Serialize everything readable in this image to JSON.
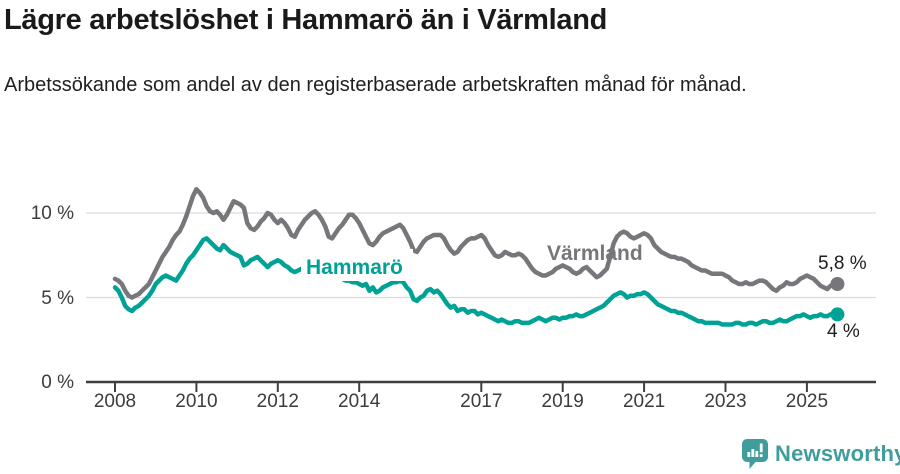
{
  "header": {
    "title": "Lägre arbetslöshet i Hammarö än i Värmland",
    "subtitle": "Arbetssökande som andel av den registerbaserade arbetskraften månad för månad."
  },
  "footer": {
    "brand": "Newsworthy",
    "brand_color": "#3f9d9d"
  },
  "chart_data": {
    "type": "line",
    "title": "Lägre arbetslöshet i Hammarö än i Värmland",
    "subtitle": "Arbetssökande som andel av den registerbaserade arbetskraften månad för månad.",
    "unit": "%",
    "x_start": "2008-01",
    "x_end": "2025-10",
    "points_per_year": 12,
    "x_ticks": [
      2008,
      2010,
      2012,
      2014,
      2017,
      2019,
      2021,
      2023,
      2025
    ],
    "y_ticks": [
      {
        "value": 0,
        "label": "0 %"
      },
      {
        "value": 5,
        "label": "5 %"
      },
      {
        "value": 10,
        "label": "10 %"
      }
    ],
    "ylim": [
      0,
      12
    ],
    "grid": "horizontal",
    "legend_position": "inline",
    "series": [
      {
        "name": "Hammarö",
        "color": "#00a296",
        "end_label": "4 %",
        "end_value": 4.0,
        "values": [
          5.6,
          5.4,
          5.0,
          4.5,
          4.3,
          4.2,
          4.4,
          4.5,
          4.7,
          4.9,
          5.1,
          5.4,
          5.8,
          6.0,
          6.2,
          6.3,
          6.2,
          6.1,
          6.0,
          6.3,
          6.6,
          7.0,
          7.3,
          7.5,
          7.8,
          8.1,
          8.4,
          8.5,
          8.3,
          8.1,
          7.9,
          7.8,
          8.1,
          7.9,
          7.7,
          7.6,
          7.5,
          7.4,
          6.9,
          7.0,
          7.2,
          7.3,
          7.4,
          7.2,
          7.0,
          6.8,
          7.0,
          7.1,
          7.2,
          7.1,
          6.9,
          6.8,
          6.6,
          6.5,
          6.6,
          6.7,
          6.8,
          6.7,
          6.6,
          6.6,
          6.5,
          6.4,
          6.3,
          6.2,
          6.2,
          6.3,
          6.2,
          6.1,
          6.0,
          6.0,
          5.9,
          5.9,
          5.8,
          5.7,
          5.8,
          5.4,
          5.6,
          5.3,
          5.4,
          5.6,
          5.7,
          5.8,
          5.9,
          5.9,
          6.0,
          5.9,
          5.6,
          5.4,
          4.9,
          4.8,
          5.0,
          5.1,
          5.4,
          5.5,
          5.3,
          5.4,
          5.2,
          4.9,
          4.6,
          4.4,
          4.5,
          4.2,
          4.3,
          4.3,
          4.1,
          4.2,
          4.2,
          4.0,
          4.1,
          4.0,
          3.9,
          3.8,
          3.7,
          3.6,
          3.7,
          3.6,
          3.5,
          3.5,
          3.6,
          3.6,
          3.5,
          3.5,
          3.5,
          3.6,
          3.7,
          3.8,
          3.7,
          3.6,
          3.7,
          3.8,
          3.8,
          3.7,
          3.8,
          3.8,
          3.9,
          3.9,
          4.0,
          3.9,
          3.9,
          4.0,
          4.1,
          4.2,
          4.3,
          4.4,
          4.5,
          4.7,
          4.9,
          5.1,
          5.2,
          5.3,
          5.2,
          5.0,
          5.1,
          5.1,
          5.2,
          5.2,
          5.3,
          5.2,
          5.0,
          4.8,
          4.6,
          4.5,
          4.4,
          4.3,
          4.2,
          4.2,
          4.1,
          4.1,
          4.0,
          3.9,
          3.8,
          3.7,
          3.6,
          3.6,
          3.5,
          3.5,
          3.5,
          3.5,
          3.5,
          3.4,
          3.4,
          3.4,
          3.4,
          3.5,
          3.5,
          3.4,
          3.4,
          3.5,
          3.5,
          3.4,
          3.5,
          3.6,
          3.6,
          3.5,
          3.5,
          3.6,
          3.7,
          3.6,
          3.6,
          3.7,
          3.8,
          3.9,
          3.9,
          4.0,
          3.9,
          3.8,
          3.9,
          3.9,
          4.0,
          3.9,
          3.9,
          4.0,
          4.0,
          4.0
        ]
      },
      {
        "name": "Värmland",
        "color": "#76767b",
        "end_label": "5,8 %",
        "end_value": 5.8,
        "values": [
          6.1,
          6.0,
          5.8,
          5.4,
          5.1,
          5.0,
          5.1,
          5.2,
          5.4,
          5.6,
          5.8,
          6.2,
          6.6,
          7.0,
          7.4,
          7.7,
          8.0,
          8.4,
          8.7,
          8.9,
          9.3,
          9.8,
          10.4,
          11.0,
          11.4,
          11.2,
          10.9,
          10.4,
          10.1,
          10.0,
          10.1,
          9.9,
          9.6,
          9.9,
          10.3,
          10.7,
          10.6,
          10.5,
          10.3,
          9.4,
          9.1,
          9.0,
          9.2,
          9.5,
          9.7,
          10.0,
          9.9,
          9.6,
          9.4,
          9.6,
          9.4,
          9.1,
          8.7,
          8.6,
          9.0,
          9.3,
          9.6,
          9.8,
          10.0,
          10.1,
          9.9,
          9.6,
          9.2,
          8.6,
          8.5,
          8.8,
          9.1,
          9.3,
          9.6,
          9.9,
          9.9,
          9.7,
          9.4,
          9.0,
          8.6,
          8.2,
          8.1,
          8.3,
          8.6,
          8.8,
          8.9,
          9.0,
          9.1,
          9.2,
          9.3,
          9.1,
          8.7,
          8.3,
          7.8,
          7.7,
          8.0,
          8.3,
          8.5,
          8.6,
          8.7,
          8.7,
          8.7,
          8.5,
          8.1,
          7.8,
          7.6,
          7.7,
          8.0,
          8.2,
          8.4,
          8.5,
          8.5,
          8.6,
          8.7,
          8.5,
          8.1,
          7.8,
          7.5,
          7.4,
          7.5,
          7.7,
          7.6,
          7.5,
          7.5,
          7.6,
          7.5,
          7.3,
          7.0,
          6.7,
          6.5,
          6.4,
          6.3,
          6.3,
          6.4,
          6.5,
          6.7,
          6.8,
          6.9,
          6.8,
          6.7,
          6.5,
          6.4,
          6.5,
          6.7,
          6.8,
          6.6,
          6.4,
          6.2,
          6.3,
          6.5,
          6.7,
          7.4,
          8.2,
          8.6,
          8.8,
          8.9,
          8.8,
          8.6,
          8.5,
          8.6,
          8.7,
          8.8,
          8.7,
          8.5,
          8.1,
          7.9,
          7.7,
          7.6,
          7.5,
          7.4,
          7.4,
          7.3,
          7.3,
          7.2,
          7.1,
          6.9,
          6.8,
          6.7,
          6.6,
          6.6,
          6.5,
          6.4,
          6.4,
          6.4,
          6.4,
          6.3,
          6.2,
          6.0,
          5.9,
          5.8,
          5.8,
          5.9,
          5.8,
          5.8,
          5.9,
          6.0,
          6.0,
          5.9,
          5.7,
          5.5,
          5.4,
          5.6,
          5.7,
          5.9,
          5.8,
          5.8,
          5.9,
          6.1,
          6.2,
          6.3,
          6.2,
          6.1,
          5.9,
          5.7,
          5.6,
          5.5,
          5.7,
          5.8,
          5.8
        ]
      }
    ],
    "colors": {
      "grid": "#dcdcdc",
      "axis": "#3f3f3f",
      "tick_text": "#3c3c3c",
      "value_label_text": "#1d1d1d"
    }
  }
}
